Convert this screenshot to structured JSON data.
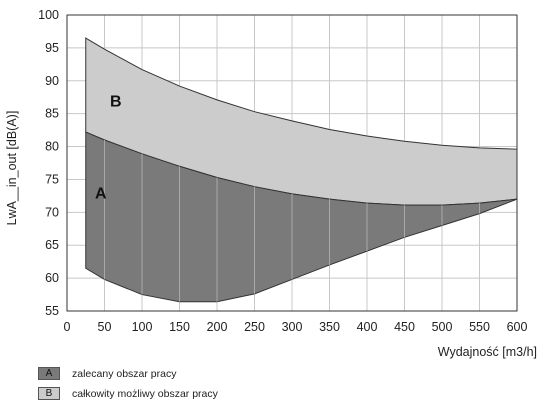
{
  "chart_data": {
    "type": "area",
    "ylabel": "LwA__in_out [dB(A)]",
    "xlabel": "Wydajność [m3/h]",
    "xlim": [
      0,
      600
    ],
    "ylim": [
      55,
      100
    ],
    "xticks": [
      0,
      50,
      100,
      150,
      200,
      250,
      300,
      350,
      400,
      450,
      500,
      550,
      600
    ],
    "yticks": [
      55,
      60,
      65,
      70,
      75,
      80,
      85,
      90,
      95,
      100
    ],
    "grid": true,
    "regions": [
      {
        "name": "A",
        "color": "#7a7a7a",
        "upper": {
          "x": [
            25,
            50,
            100,
            150,
            200,
            250,
            300,
            350,
            400,
            450,
            500,
            550,
            600
          ],
          "y": [
            82.2,
            81.0,
            78.9,
            77.0,
            75.3,
            73.9,
            72.8,
            72.0,
            71.4,
            71.1,
            71.1,
            71.4,
            72.0
          ]
        },
        "lower": {
          "x": [
            25,
            50,
            100,
            150,
            200,
            250,
            300,
            350,
            400,
            450,
            500,
            550,
            600
          ],
          "y": [
            61.5,
            59.8,
            57.5,
            56.4,
            56.4,
            57.6,
            59.8,
            62.0,
            64.1,
            66.2,
            68.0,
            69.8,
            72.0
          ]
        }
      },
      {
        "name": "B",
        "color": "#cccccc",
        "upper": {
          "x": [
            25,
            50,
            100,
            150,
            200,
            250,
            300,
            350,
            400,
            450,
            500,
            550,
            600
          ],
          "y": [
            96.5,
            94.8,
            91.7,
            89.2,
            87.1,
            85.3,
            83.9,
            82.6,
            81.6,
            80.8,
            80.2,
            79.8,
            79.6
          ]
        },
        "lower_ref": "A.upper"
      }
    ],
    "labels": [
      {
        "text": "A",
        "x": 45,
        "y": 73
      },
      {
        "text": "B",
        "x": 65,
        "y": 87
      }
    ],
    "legend": [
      {
        "key": "A",
        "label": "zalecany obszar pracy",
        "color": "#7a7a7a"
      },
      {
        "key": "B",
        "label": "całkowity możliwy obszar pracy",
        "color": "#cccccc"
      }
    ]
  }
}
